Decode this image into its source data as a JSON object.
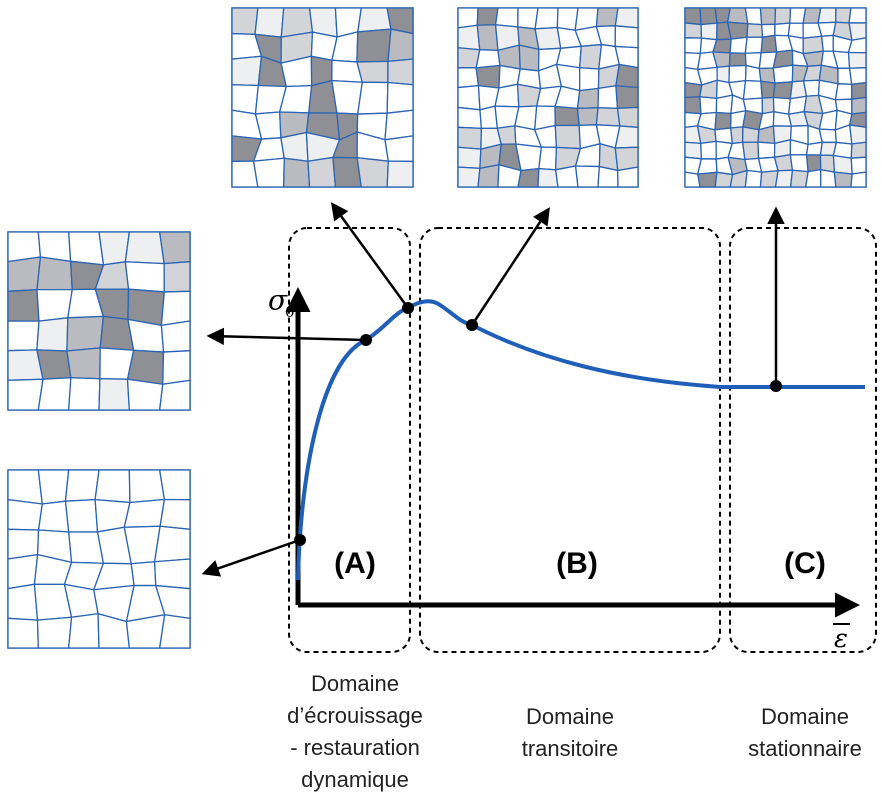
{
  "axes": {
    "y_label": "σ",
    "y_label_sub": "0",
    "x_label": "ε"
  },
  "regions": [
    {
      "tag": "(A)",
      "label_lines": [
        "Domaine",
        "d’écrouissage",
        "- restauration",
        "dynamique"
      ]
    },
    {
      "tag": "(B)",
      "label_lines": [
        "Domaine",
        "transitoire"
      ]
    },
    {
      "tag": "(C)",
      "label_lines": [
        "Domaine",
        "stationnaire"
      ]
    }
  ]
}
